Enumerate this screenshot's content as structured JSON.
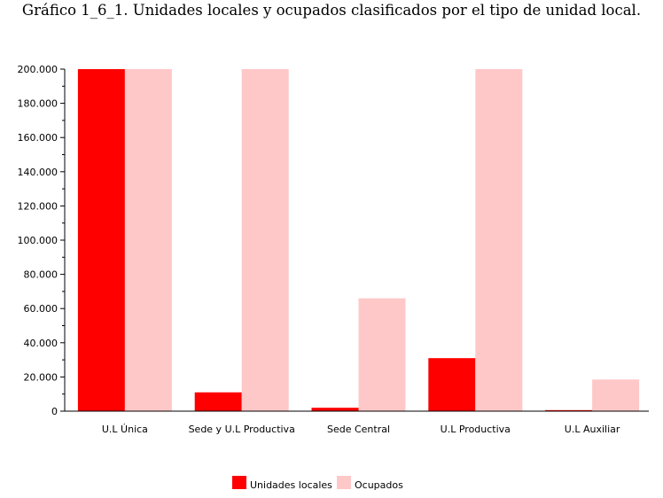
{
  "chart_data": {
    "type": "bar",
    "title": "Gráfico 1_6_1. Unidades locales y ocupados clasificados por el tipo de unidad local.",
    "categories": [
      "U.L Única",
      "Sede y U.L Productiva",
      "Sede Central",
      "U.L Productiva",
      "U.L Auxiliar"
    ],
    "series": [
      {
        "name": "Unidades locales",
        "color": "#ff0000",
        "values": [
          200000,
          11000,
          2000,
          31000,
          600
        ]
      },
      {
        "name": "Ocupados",
        "color": "#ffc8c8",
        "values": [
          200000,
          200000,
          66000,
          200000,
          18500
        ]
      }
    ],
    "ylim": [
      0,
      200000
    ],
    "y_ticks": [
      0,
      20000,
      40000,
      60000,
      80000,
      100000,
      120000,
      140000,
      160000,
      180000,
      200000
    ],
    "y_tick_labels": [
      "0",
      "20.000",
      "40.000",
      "60.000",
      "80.000",
      "100.000",
      "120.000",
      "140.000",
      "160.000",
      "180.000",
      "200.000"
    ],
    "grid": true,
    "legend_position": "bottom-center"
  }
}
